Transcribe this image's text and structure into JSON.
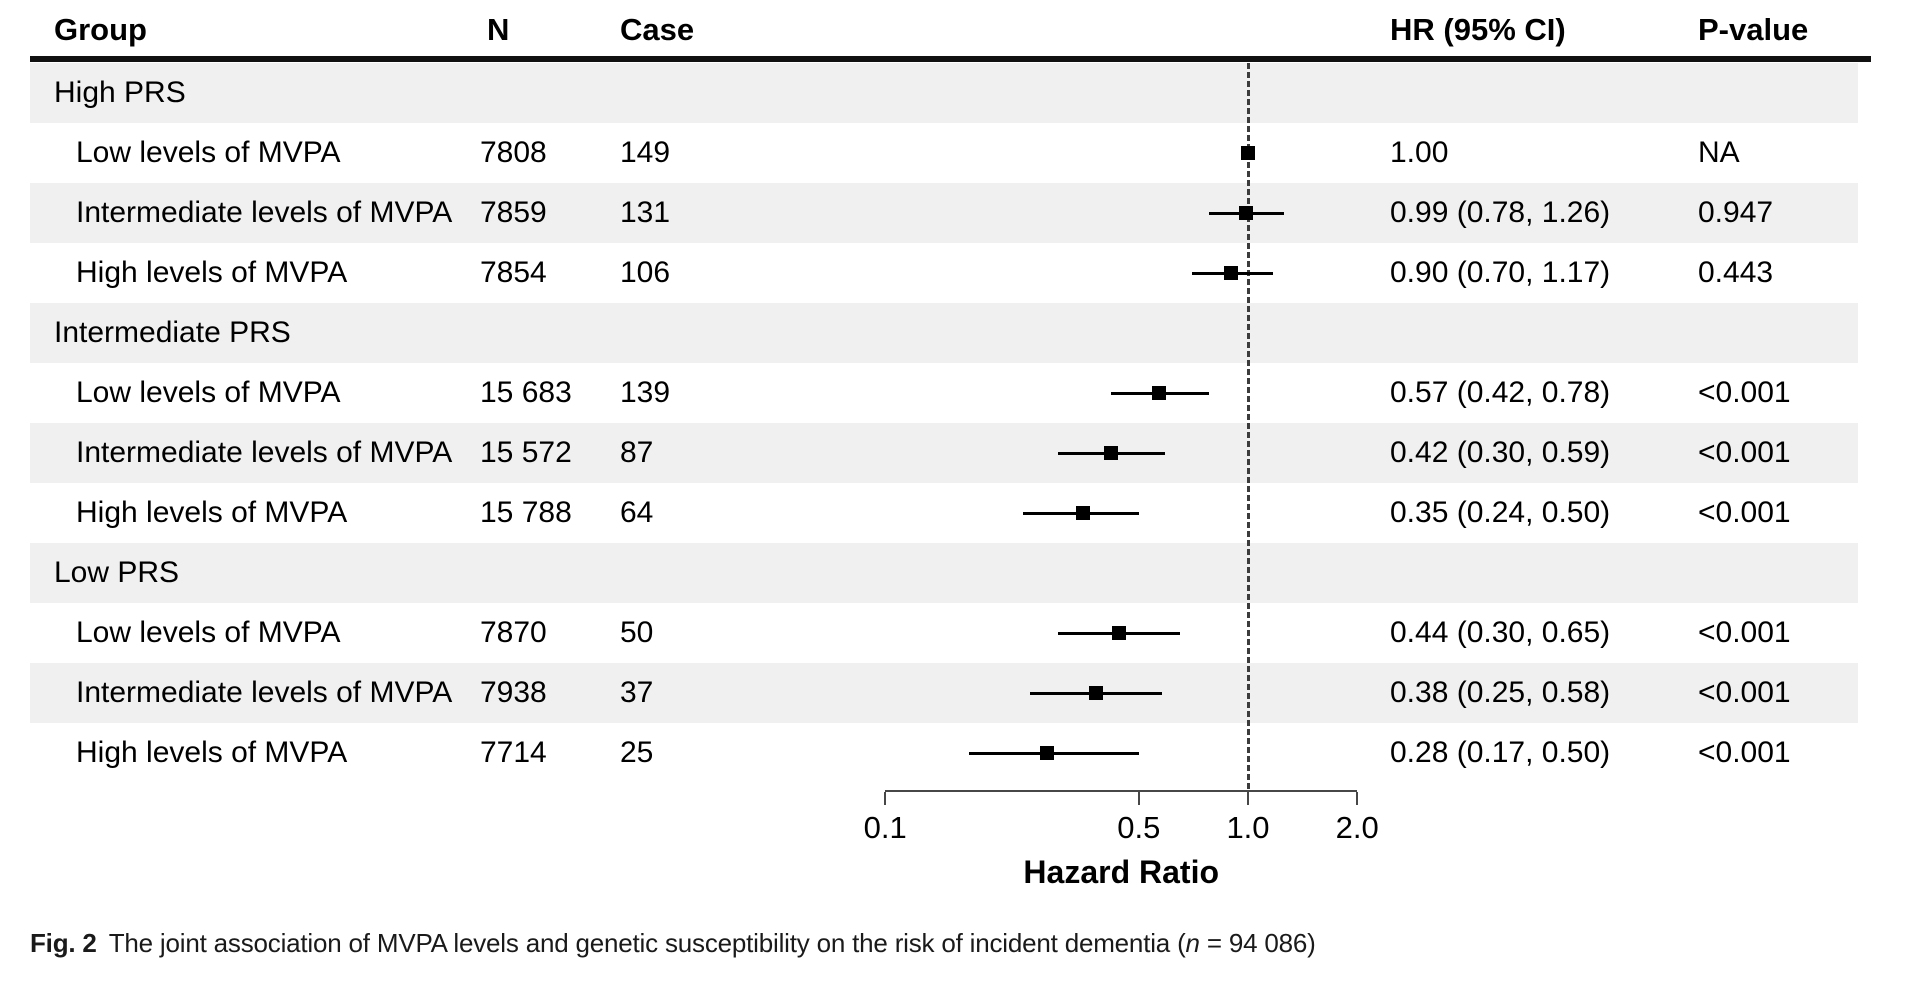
{
  "colors": {
    "stripe": "#f0f0f0",
    "text": "#000000",
    "marker": "#000000",
    "rule": "#111111",
    "axis": "#474747",
    "ref_line": "#3c3c3c"
  },
  "table": {
    "headers": {
      "group": "Group",
      "n": "N",
      "case": "Case",
      "hr": "HR (95% CI)",
      "p": "P-value"
    }
  },
  "chart_data": {
    "type": "scatter",
    "subtype": "forest-plot",
    "xlabel": "Hazard Ratio",
    "x_scale": "log",
    "x_ticks": [
      0.1,
      0.5,
      1.0,
      2.0
    ],
    "x_tick_labels": [
      "0.1",
      "0.5",
      "1.0",
      "2.0"
    ],
    "xlim": [
      0.1,
      2.0
    ],
    "reference_line": 1.0,
    "rows": [
      {
        "type": "group",
        "label": "High PRS",
        "n": "",
        "case": "",
        "hr": null,
        "lo": null,
        "hi": null,
        "hr_text": "",
        "p": ""
      },
      {
        "type": "data",
        "label": "Low levels of MVPA",
        "n": "7808",
        "case": "149",
        "hr": 1.0,
        "lo": null,
        "hi": null,
        "hr_text": "1.00",
        "p": "NA"
      },
      {
        "type": "data",
        "label": "Intermediate levels of MVPA",
        "n": "7859",
        "case": "131",
        "hr": 0.99,
        "lo": 0.78,
        "hi": 1.26,
        "hr_text": "0.99 (0.78, 1.26)",
        "p": "0.947"
      },
      {
        "type": "data",
        "label": "High levels of MVPA",
        "n": "7854",
        "case": "106",
        "hr": 0.9,
        "lo": 0.7,
        "hi": 1.17,
        "hr_text": "0.90 (0.70, 1.17)",
        "p": "0.443"
      },
      {
        "type": "group",
        "label": "Intermediate PRS",
        "n": "",
        "case": "",
        "hr": null,
        "lo": null,
        "hi": null,
        "hr_text": "",
        "p": ""
      },
      {
        "type": "data",
        "label": "Low levels of MVPA",
        "n": "15 683",
        "case": "139",
        "hr": 0.57,
        "lo": 0.42,
        "hi": 0.78,
        "hr_text": "0.57 (0.42, 0.78)",
        "p": "<0.001"
      },
      {
        "type": "data",
        "label": "Intermediate levels of MVPA",
        "n": "15 572",
        "case": "87",
        "hr": 0.42,
        "lo": 0.3,
        "hi": 0.59,
        "hr_text": "0.42 (0.30, 0.59)",
        "p": "<0.001"
      },
      {
        "type": "data",
        "label": "High levels of MVPA",
        "n": "15 788",
        "case": "64",
        "hr": 0.35,
        "lo": 0.24,
        "hi": 0.5,
        "hr_text": "0.35 (0.24, 0.50)",
        "p": "<0.001"
      },
      {
        "type": "group",
        "label": "Low PRS",
        "n": "",
        "case": "",
        "hr": null,
        "lo": null,
        "hi": null,
        "hr_text": "",
        "p": ""
      },
      {
        "type": "data",
        "label": "Low levels of MVPA",
        "n": "7870",
        "case": "50",
        "hr": 0.44,
        "lo": 0.3,
        "hi": 0.65,
        "hr_text": "0.44 (0.30, 0.65)",
        "p": "<0.001"
      },
      {
        "type": "data",
        "label": "Intermediate levels of MVPA",
        "n": "7938",
        "case": "37",
        "hr": 0.38,
        "lo": 0.25,
        "hi": 0.58,
        "hr_text": "0.38 (0.25, 0.58)",
        "p": "<0.001"
      },
      {
        "type": "data",
        "label": "High levels of MVPA",
        "n": "7714",
        "case": "25",
        "hr": 0.28,
        "lo": 0.17,
        "hi": 0.5,
        "hr_text": "0.28 (0.17, 0.50)",
        "p": "<0.001"
      }
    ]
  },
  "caption": {
    "fig_label": "Fig. 2",
    "text_before_n": "The joint association of MVPA levels and genetic susceptibility on the risk of incident dementia (",
    "n_symbol": "n",
    "text_after_n": " = 94 086)"
  }
}
